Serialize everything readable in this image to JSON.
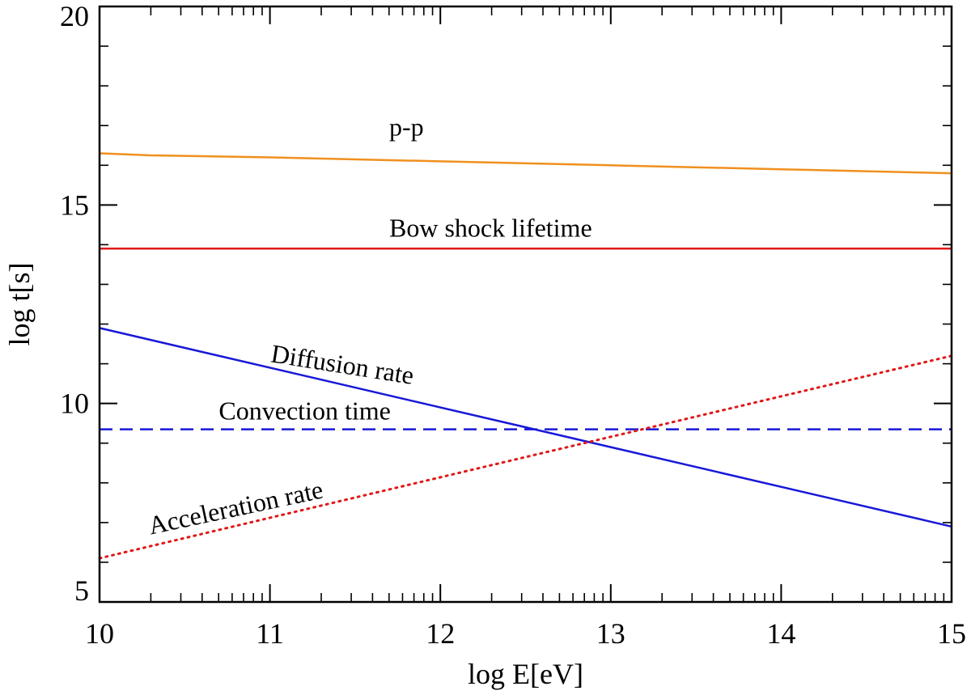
{
  "chart_data": {
    "type": "line",
    "title": "",
    "xlabel": "log E[eV]",
    "ylabel": "log t[s]",
    "xlim": [
      10,
      15
    ],
    "ylim": [
      5,
      20
    ],
    "xticks": [
      "10",
      "11",
      "12",
      "13",
      "14",
      "15"
    ],
    "yticks": [
      "5",
      "10",
      "15",
      "20"
    ],
    "grid": false,
    "series": [
      {
        "name": "p-p",
        "color": "#f0901e",
        "style": "solid",
        "x": [
          10,
          10.3,
          11,
          12,
          13,
          14,
          15
        ],
        "y": [
          16.3,
          16.25,
          16.2,
          16.1,
          16.0,
          15.9,
          15.8
        ]
      },
      {
        "name": "Bow shock lifetime",
        "color": "#e01818",
        "style": "solid",
        "x": [
          10,
          15
        ],
        "y": [
          13.9,
          13.9
        ]
      },
      {
        "name": "Diffusion rate",
        "color": "#1818d8",
        "style": "solid",
        "x": [
          10,
          15
        ],
        "y": [
          11.9,
          6.9
        ]
      },
      {
        "name": "Convection time",
        "color": "#1818d8",
        "style": "dashed",
        "x": [
          10,
          15
        ],
        "y": [
          9.35,
          9.35
        ]
      },
      {
        "name": "Acceleration rate",
        "color": "#e01818",
        "style": "dotted",
        "x": [
          10,
          15
        ],
        "y": [
          6.1,
          11.2
        ]
      }
    ],
    "annotations": [
      {
        "text": "p-p",
        "x": 11.7,
        "y": 16.75,
        "angle": 0
      },
      {
        "text": "Bow shock lifetime",
        "x": 11.7,
        "y": 14.2,
        "angle": 0
      },
      {
        "text": "Diffusion rate",
        "x": 11.0,
        "y": 11.05,
        "angle": 9
      },
      {
        "text": "Convection time",
        "x": 10.7,
        "y": 9.6,
        "angle": 0
      },
      {
        "text": "Acceleration rate",
        "x": 10.3,
        "y": 6.7,
        "angle": -12
      }
    ]
  }
}
